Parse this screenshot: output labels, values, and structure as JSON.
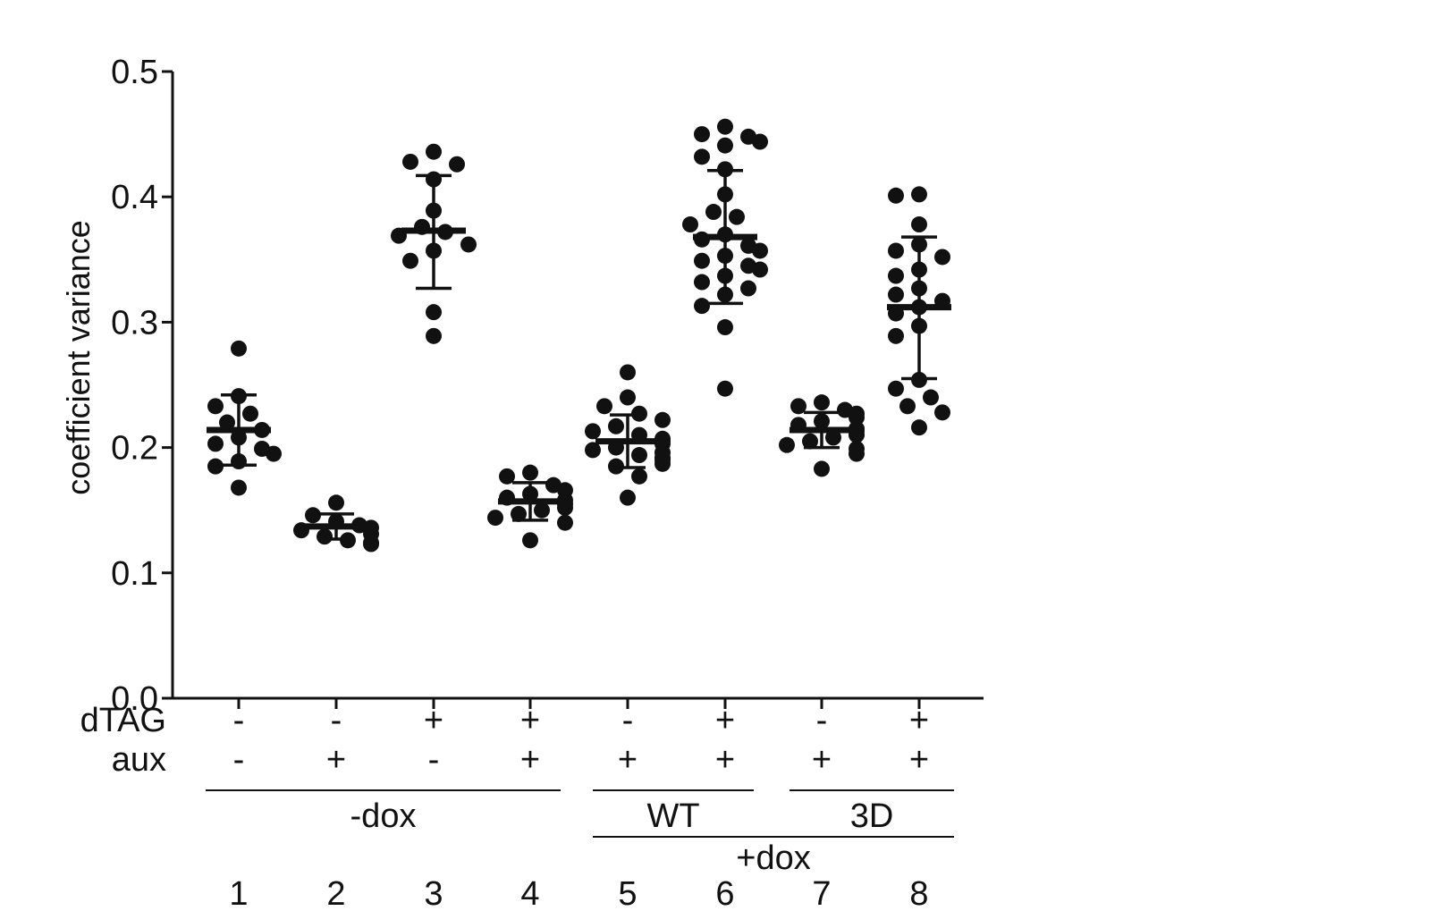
{
  "chart_data": {
    "type": "scatter",
    "ylabel": "coefficient variance",
    "xlabel": "",
    "ylim": [
      0.0,
      0.5
    ],
    "yticks": [
      "0.0",
      "0.1",
      "0.2",
      "0.3",
      "0.4",
      "0.5"
    ],
    "grid": false,
    "legend": "none",
    "point_color": "#111111",
    "row_labels": {
      "dtag": "dTAG",
      "aux": "aux"
    },
    "lanes": [
      {
        "number": "1",
        "dtag": "-",
        "aux": "-",
        "mean": 0.214,
        "sd_low": 0.186,
        "sd_high": 0.242,
        "points": [
          0.279,
          0.241,
          0.233,
          0.227,
          0.22,
          0.214,
          0.208,
          0.203,
          0.199,
          0.195,
          0.189,
          0.185,
          0.168
        ]
      },
      {
        "number": "2",
        "dtag": "-",
        "aux": "+",
        "mean": 0.137,
        "sd_low": 0.127,
        "sd_high": 0.147,
        "points": [
          0.156,
          0.146,
          0.141,
          0.138,
          0.136,
          0.134,
          0.131,
          0.129,
          0.126,
          0.124,
          0.123
        ]
      },
      {
        "number": "3",
        "dtag": "+",
        "aux": "-",
        "mean": 0.373,
        "sd_low": 0.327,
        "sd_high": 0.417,
        "points": [
          0.436,
          0.428,
          0.426,
          0.414,
          0.389,
          0.376,
          0.372,
          0.369,
          0.362,
          0.357,
          0.349,
          0.308,
          0.289
        ]
      },
      {
        "number": "4",
        "dtag": "+",
        "aux": "+",
        "mean": 0.157,
        "sd_low": 0.142,
        "sd_high": 0.172,
        "points": [
          0.18,
          0.177,
          0.17,
          0.166,
          0.163,
          0.16,
          0.158,
          0.155,
          0.152,
          0.15,
          0.147,
          0.144,
          0.14,
          0.126
        ]
      },
      {
        "number": "5",
        "dtag": "-",
        "aux": "+",
        "mean": 0.205,
        "sd_low": 0.184,
        "sd_high": 0.226,
        "points": [
          0.26,
          0.24,
          0.233,
          0.227,
          0.222,
          0.217,
          0.213,
          0.21,
          0.207,
          0.205,
          0.203,
          0.2,
          0.198,
          0.196,
          0.194,
          0.192,
          0.19,
          0.187,
          0.185,
          0.177,
          0.16
        ]
      },
      {
        "number": "6",
        "dtag": "+",
        "aux": "+",
        "mean": 0.368,
        "sd_low": 0.315,
        "sd_high": 0.421,
        "points": [
          0.456,
          0.45,
          0.448,
          0.444,
          0.441,
          0.432,
          0.422,
          0.402,
          0.388,
          0.384,
          0.378,
          0.37,
          0.366,
          0.361,
          0.357,
          0.353,
          0.349,
          0.345,
          0.342,
          0.337,
          0.332,
          0.327,
          0.322,
          0.313,
          0.296,
          0.247
        ]
      },
      {
        "number": "7",
        "dtag": "-",
        "aux": "+",
        "mean": 0.214,
        "sd_low": 0.2,
        "sd_high": 0.228,
        "points": [
          0.236,
          0.233,
          0.23,
          0.227,
          0.224,
          0.221,
          0.218,
          0.215,
          0.213,
          0.21,
          0.208,
          0.205,
          0.202,
          0.199,
          0.195,
          0.183
        ]
      },
      {
        "number": "8",
        "dtag": "+",
        "aux": "+",
        "mean": 0.312,
        "sd_low": 0.255,
        "sd_high": 0.368,
        "points": [
          0.402,
          0.401,
          0.378,
          0.362,
          0.357,
          0.352,
          0.342,
          0.337,
          0.327,
          0.322,
          0.317,
          0.312,
          0.307,
          0.297,
          0.289,
          0.254,
          0.247,
          0.24,
          0.233,
          0.228,
          0.216
        ]
      }
    ],
    "groups": {
      "minus_dox": {
        "label": "-dox",
        "from": 1,
        "to": 4
      },
      "wt": {
        "label": "WT",
        "from": 5,
        "to": 6
      },
      "three_d": {
        "label": "3D",
        "from": 7,
        "to": 8
      },
      "plus_dox": {
        "label": "+dox",
        "from": 5,
        "to": 8
      }
    }
  }
}
